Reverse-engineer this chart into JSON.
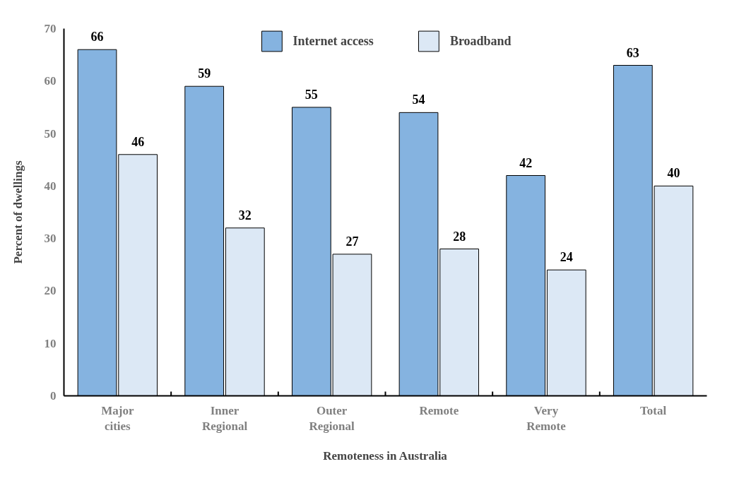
{
  "chart_data": {
    "type": "bar",
    "xlabel": "Remoteness in Australia",
    "ylabel": "Percent of dwellings",
    "categories": [
      "Major\ncities",
      "Inner\nRegional",
      "Outer\nRegional",
      "Remote",
      "Very\nRemote",
      "Total"
    ],
    "series": [
      {
        "name": "Internet access",
        "color": "#85b3e0",
        "values": [
          66,
          59,
          55,
          54,
          42,
          63
        ]
      },
      {
        "name": "Broadband",
        "color": "#dce8f5",
        "values": [
          46,
          32,
          27,
          28,
          24,
          40
        ]
      }
    ],
    "ylim": [
      0,
      70
    ],
    "yticks": [
      0,
      10,
      20,
      30,
      40,
      50,
      60,
      70
    ],
    "grid": false,
    "legend": "top",
    "data_labels": true
  }
}
